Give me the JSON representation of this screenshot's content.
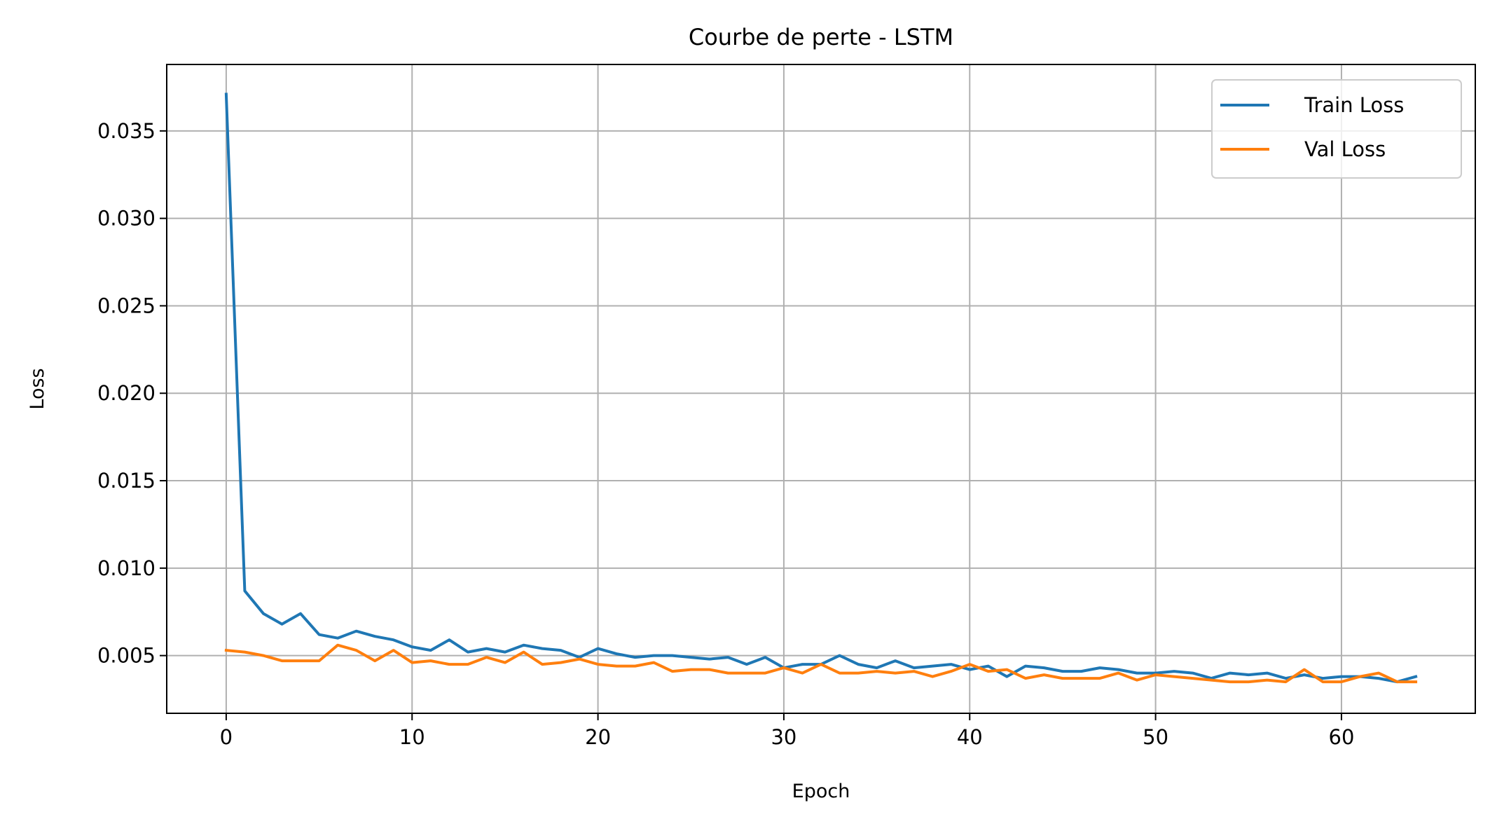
{
  "chart_data": {
    "type": "line",
    "title": "Courbe de perte - LSTM",
    "xlabel": "Epoch",
    "ylabel": "Loss",
    "xlim": [
      -3.2,
      67.2
    ],
    "ylim": [
      0.0017,
      0.0388
    ],
    "xticks": [
      0,
      10,
      20,
      30,
      40,
      50,
      60
    ],
    "xtick_labels": [
      "0",
      "10",
      "20",
      "30",
      "40",
      "50",
      "60"
    ],
    "yticks": [
      0.005,
      0.01,
      0.015,
      0.02,
      0.025,
      0.03,
      0.035
    ],
    "ytick_labels": [
      "0.005",
      "0.010",
      "0.015",
      "0.020",
      "0.025",
      "0.030",
      "0.035"
    ],
    "grid": true,
    "legend_position": "top-right",
    "x": [
      0,
      1,
      2,
      3,
      4,
      5,
      6,
      7,
      8,
      9,
      10,
      11,
      12,
      13,
      14,
      15,
      16,
      17,
      18,
      19,
      20,
      21,
      22,
      23,
      24,
      25,
      26,
      27,
      28,
      29,
      30,
      31,
      32,
      33,
      34,
      35,
      36,
      37,
      38,
      39,
      40,
      41,
      42,
      43,
      44,
      45,
      46,
      47,
      48,
      49,
      50,
      51,
      52,
      53,
      54,
      55,
      56,
      57,
      58,
      59,
      60,
      61,
      62,
      63,
      64
    ],
    "series": [
      {
        "name": "Train Loss",
        "color": "#1f77b4",
        "values": [
          0.0371,
          0.0087,
          0.0074,
          0.0068,
          0.0074,
          0.0062,
          0.006,
          0.0064,
          0.0061,
          0.0059,
          0.0055,
          0.0053,
          0.0059,
          0.0052,
          0.0054,
          0.0052,
          0.0056,
          0.0054,
          0.0053,
          0.0049,
          0.0054,
          0.0051,
          0.0049,
          0.005,
          0.005,
          0.0049,
          0.0048,
          0.0049,
          0.0045,
          0.0049,
          0.0043,
          0.0045,
          0.0045,
          0.005,
          0.0045,
          0.0043,
          0.0047,
          0.0043,
          0.0044,
          0.0045,
          0.0042,
          0.0044,
          0.0038,
          0.0044,
          0.0043,
          0.0041,
          0.0041,
          0.0043,
          0.0042,
          0.004,
          0.004,
          0.0041,
          0.004,
          0.0037,
          0.004,
          0.0039,
          0.004,
          0.0037,
          0.0039,
          0.0037,
          0.0038,
          0.0038,
          0.0037,
          0.0035,
          0.0038
        ]
      },
      {
        "name": "Val Loss",
        "color": "#ff7f0e",
        "values": [
          0.0053,
          0.0052,
          0.005,
          0.0047,
          0.0047,
          0.0047,
          0.0056,
          0.0053,
          0.0047,
          0.0053,
          0.0046,
          0.0047,
          0.0045,
          0.0045,
          0.0049,
          0.0046,
          0.0052,
          0.0045,
          0.0046,
          0.0048,
          0.0045,
          0.0044,
          0.0044,
          0.0046,
          0.0041,
          0.0042,
          0.0042,
          0.004,
          0.004,
          0.004,
          0.0043,
          0.004,
          0.0045,
          0.004,
          0.004,
          0.0041,
          0.004,
          0.0041,
          0.0038,
          0.0041,
          0.0045,
          0.0041,
          0.0042,
          0.0037,
          0.0039,
          0.0037,
          0.0037,
          0.0037,
          0.004,
          0.0036,
          0.0039,
          0.0038,
          0.0037,
          0.0036,
          0.0035,
          0.0035,
          0.0036,
          0.0035,
          0.0042,
          0.0035,
          0.0035,
          0.0038,
          0.004,
          0.0035,
          0.0035
        ]
      }
    ]
  }
}
